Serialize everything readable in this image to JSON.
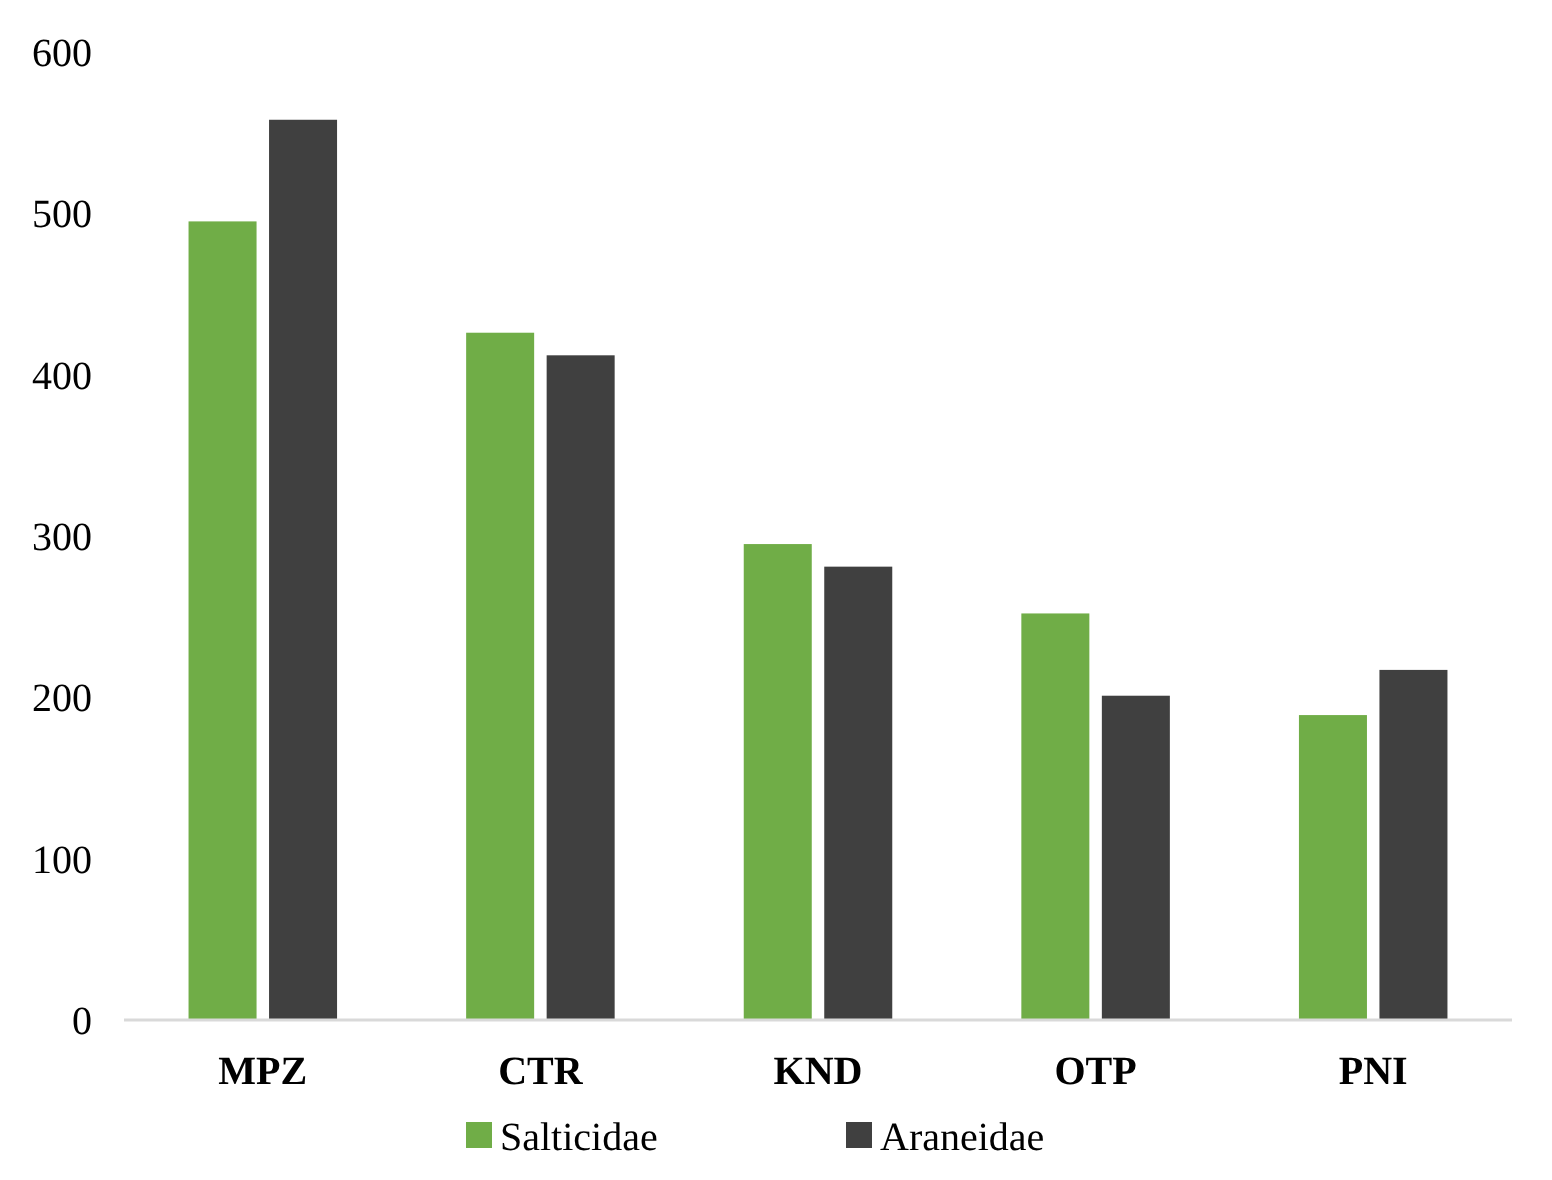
{
  "chart_data": {
    "type": "bar",
    "categories": [
      "MPZ",
      "CTR",
      "KND",
      "OTP",
      "PNI"
    ],
    "series": [
      {
        "name": "Salticidae",
        "color": "#70ad47",
        "values": [
          495,
          426,
          295,
          252,
          189
        ]
      },
      {
        "name": "Araneidae",
        "color": "#404040",
        "values": [
          558,
          412,
          281,
          201,
          217
        ]
      }
    ],
    "ylim": [
      0,
      600
    ],
    "yticks": [
      0,
      100,
      200,
      300,
      400,
      500,
      600
    ],
    "grid": false,
    "legend": "bottom"
  }
}
